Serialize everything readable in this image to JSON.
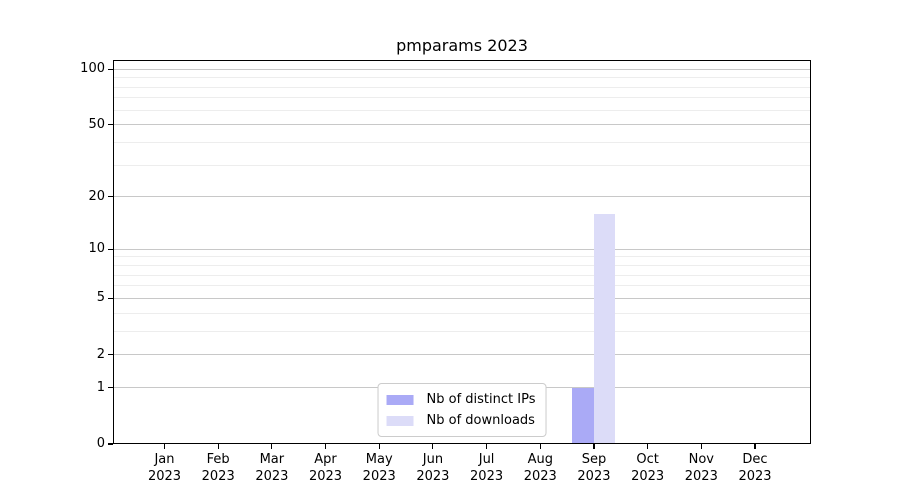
{
  "figure": {
    "background": "#ffffff"
  },
  "chart_data": {
    "type": "bar",
    "title": "pmparams 2023",
    "categories": [
      "Jan 2023",
      "Feb 2023",
      "Mar 2023",
      "Apr 2023",
      "May 2023",
      "Jun 2023",
      "Jul 2023",
      "Aug 2023",
      "Sep 2023",
      "Oct 2023",
      "Nov 2023",
      "Dec 2023"
    ],
    "series": [
      {
        "name": "Nb of distinct IPs",
        "color": "#aaaaf6",
        "values": [
          0,
          0,
          0,
          0,
          0,
          0,
          0,
          0,
          1,
          0,
          0,
          0
        ]
      },
      {
        "name": "Nb of downloads",
        "color": "#dcdcf8",
        "values": [
          0,
          0,
          0,
          0,
          0,
          0,
          0,
          0,
          16,
          0,
          0,
          0
        ]
      }
    ],
    "xlabel": "",
    "ylabel": "",
    "yscale": "log1p",
    "ylim": [
      0,
      112
    ],
    "y_major_ticks": [
      0,
      1,
      2,
      5,
      10,
      20,
      50,
      100
    ],
    "y_minor_ticks": [
      3,
      4,
      6,
      7,
      8,
      9,
      30,
      40,
      60,
      70,
      80,
      90
    ],
    "grid": "horizontal",
    "legend_position": "lower center",
    "colors": {
      "major_grid": "#c8c8c8",
      "minor_grid": "#ededed",
      "axis": "#000000",
      "legend_border": "#cccccc"
    }
  }
}
